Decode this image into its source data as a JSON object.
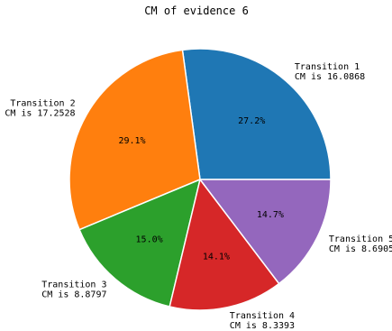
{
  "chart_data": {
    "type": "pie",
    "title": "CM of evidence 6",
    "start_angle_deg": 0,
    "direction": "counterclockwise",
    "slices": [
      {
        "name": "Transition 1",
        "cm_text": "CM is 16.0868",
        "value": 16.0868,
        "percent_label": "27.2%",
        "color": "#1f77b4"
      },
      {
        "name": "Transition 2",
        "cm_text": "CM is 17.2528",
        "value": 17.2528,
        "percent_label": "29.1%",
        "color": "#ff7f0e"
      },
      {
        "name": "Transition 3",
        "cm_text": "CM is 8.8797",
        "value": 8.8797,
        "percent_label": "15.0%",
        "color": "#2ca02c"
      },
      {
        "name": "Transition 4",
        "cm_text": "CM is 8.3393",
        "value": 8.3393,
        "percent_label": "14.1%",
        "color": "#d62728"
      },
      {
        "name": "Transition 5",
        "cm_text": "CM is 8.6905",
        "value": 8.6905,
        "percent_label": "14.7%",
        "color": "#9467bd"
      }
    ]
  }
}
